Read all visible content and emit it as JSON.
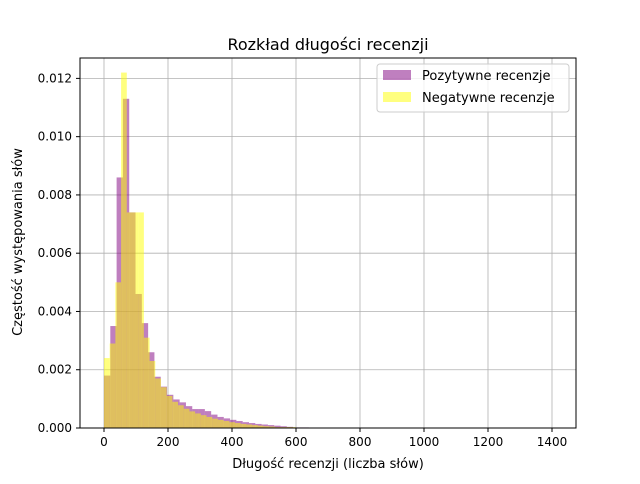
{
  "chart_data": {
    "type": "histogram",
    "title": "Rozkład długości recenzji",
    "xlabel": "Długość recenzji (liczba słów)",
    "ylabel": "Częstość występowania słów",
    "xlim": [
      -75,
      1475
    ],
    "ylim": [
      0,
      0.0127
    ],
    "grid": true,
    "legend_position": "top-right",
    "x_ticks": [
      0,
      200,
      400,
      600,
      800,
      1000,
      1200,
      1400
    ],
    "x_tick_labels": [
      "0",
      "200",
      "400",
      "600",
      "800",
      "1000",
      "1200",
      "1400"
    ],
    "y_ticks": [
      0.0,
      0.002,
      0.004,
      0.006,
      0.008,
      0.01,
      0.012
    ],
    "y_tick_labels": [
      "0.000",
      "0.002",
      "0.004",
      "0.006",
      "0.008",
      "0.010",
      "0.012"
    ],
    "series": [
      {
        "name": "Pozytywne recenzje",
        "color": "#800080",
        "opacity": 0.5,
        "bins": [
          {
            "x0": 0,
            "x1": 19.7,
            "y": 0.0018
          },
          {
            "x0": 19.7,
            "x1": 39.4,
            "y": 0.0035
          },
          {
            "x0": 39.4,
            "x1": 59.1,
            "y": 0.0086
          },
          {
            "x0": 59.1,
            "x1": 78.8,
            "y": 0.0113
          },
          {
            "x0": 78.8,
            "x1": 98.5,
            "y": 0.0074
          },
          {
            "x0": 98.5,
            "x1": 118.2,
            "y": 0.0046
          },
          {
            "x0": 118.2,
            "x1": 137.9,
            "y": 0.0036
          },
          {
            "x0": 137.9,
            "x1": 157.6,
            "y": 0.0026
          },
          {
            "x0": 157.6,
            "x1": 177.3,
            "y": 0.00176
          },
          {
            "x0": 177.3,
            "x1": 197.0,
            "y": 0.00142
          },
          {
            "x0": 197.0,
            "x1": 216.7,
            "y": 0.00114
          },
          {
            "x0": 216.7,
            "x1": 236.4,
            "y": 0.00098
          },
          {
            "x0": 236.4,
            "x1": 256.1,
            "y": 0.00088
          },
          {
            "x0": 256.1,
            "x1": 275.8,
            "y": 0.00075
          },
          {
            "x0": 275.8,
            "x1": 295.5,
            "y": 0.00065
          },
          {
            "x0": 295.5,
            "x1": 315.2,
            "y": 0.00065
          },
          {
            "x0": 315.2,
            "x1": 334.9,
            "y": 0.00058
          },
          {
            "x0": 334.9,
            "x1": 354.6,
            "y": 0.00046
          },
          {
            "x0": 354.6,
            "x1": 374.3,
            "y": 0.00038
          },
          {
            "x0": 374.3,
            "x1": 394.0,
            "y": 0.00033
          },
          {
            "x0": 394.0,
            "x1": 413.7,
            "y": 0.00028
          },
          {
            "x0": 413.7,
            "x1": 433.4,
            "y": 0.00024
          },
          {
            "x0": 433.4,
            "x1": 453.1,
            "y": 0.0002
          },
          {
            "x0": 453.1,
            "x1": 472.8,
            "y": 0.00017
          },
          {
            "x0": 472.8,
            "x1": 492.5,
            "y": 0.00014
          },
          {
            "x0": 492.5,
            "x1": 512.2,
            "y": 0.00012
          },
          {
            "x0": 512.2,
            "x1": 531.9,
            "y": 0.0001
          },
          {
            "x0": 531.9,
            "x1": 551.6,
            "y": 8e-05
          },
          {
            "x0": 551.6,
            "x1": 571.3,
            "y": 6e-05
          },
          {
            "x0": 571.3,
            "x1": 591.0,
            "y": 4e-05
          },
          {
            "x0": 591.0,
            "x1": 640,
            "y": 2e-05
          },
          {
            "x0": 640,
            "x1": 1440,
            "y": 1e-05
          }
        ]
      },
      {
        "name": "Negatywne recenzje",
        "color": "#ffff00",
        "opacity": 0.5,
        "bins": [
          {
            "x0": 0,
            "x1": 17.8,
            "y": 0.0024
          },
          {
            "x0": 17.8,
            "x1": 35.6,
            "y": 0.0029
          },
          {
            "x0": 35.6,
            "x1": 53.4,
            "y": 0.005
          },
          {
            "x0": 53.4,
            "x1": 71.2,
            "y": 0.0122
          },
          {
            "x0": 71.2,
            "x1": 89.0,
            "y": 0.0074
          },
          {
            "x0": 89.0,
            "x1": 106.8,
            "y": 0.0074
          },
          {
            "x0": 106.8,
            "x1": 124.6,
            "y": 0.0074
          },
          {
            "x0": 124.6,
            "x1": 142.4,
            "y": 0.0031
          },
          {
            "x0": 142.4,
            "x1": 160.2,
            "y": 0.0023
          },
          {
            "x0": 160.2,
            "x1": 178.0,
            "y": 0.0017
          },
          {
            "x0": 178.0,
            "x1": 195.8,
            "y": 0.0014
          },
          {
            "x0": 195.8,
            "x1": 213.6,
            "y": 0.0011
          },
          {
            "x0": 213.6,
            "x1": 231.4,
            "y": 0.0009
          },
          {
            "x0": 231.4,
            "x1": 249.2,
            "y": 0.00078
          },
          {
            "x0": 249.2,
            "x1": 267.0,
            "y": 0.00066
          },
          {
            "x0": 267.0,
            "x1": 284.8,
            "y": 0.00057
          },
          {
            "x0": 284.8,
            "x1": 302.6,
            "y": 0.0005
          },
          {
            "x0": 302.6,
            "x1": 320.4,
            "y": 0.00044
          },
          {
            "x0": 320.4,
            "x1": 338.2,
            "y": 0.00038
          },
          {
            "x0": 338.2,
            "x1": 356.0,
            "y": 0.00032
          },
          {
            "x0": 356.0,
            "x1": 373.8,
            "y": 0.00028
          },
          {
            "x0": 373.8,
            "x1": 391.6,
            "y": 0.00024
          },
          {
            "x0": 391.6,
            "x1": 409.4,
            "y": 0.0002
          },
          {
            "x0": 409.4,
            "x1": 427.2,
            "y": 0.00017
          },
          {
            "x0": 427.2,
            "x1": 445.0,
            "y": 0.00014
          },
          {
            "x0": 445.0,
            "x1": 462.8,
            "y": 0.00012
          },
          {
            "x0": 462.8,
            "x1": 480.6,
            "y": 0.0001
          },
          {
            "x0": 480.6,
            "x1": 498.4,
            "y": 8e-05
          },
          {
            "x0": 498.4,
            "x1": 516.2,
            "y": 6e-05
          },
          {
            "x0": 516.2,
            "x1": 534.0,
            "y": 5e-05
          },
          {
            "x0": 534.0,
            "x1": 600,
            "y": 3e-05
          },
          {
            "x0": 600,
            "x1": 1440,
            "y": 1e-05
          }
        ]
      }
    ]
  }
}
